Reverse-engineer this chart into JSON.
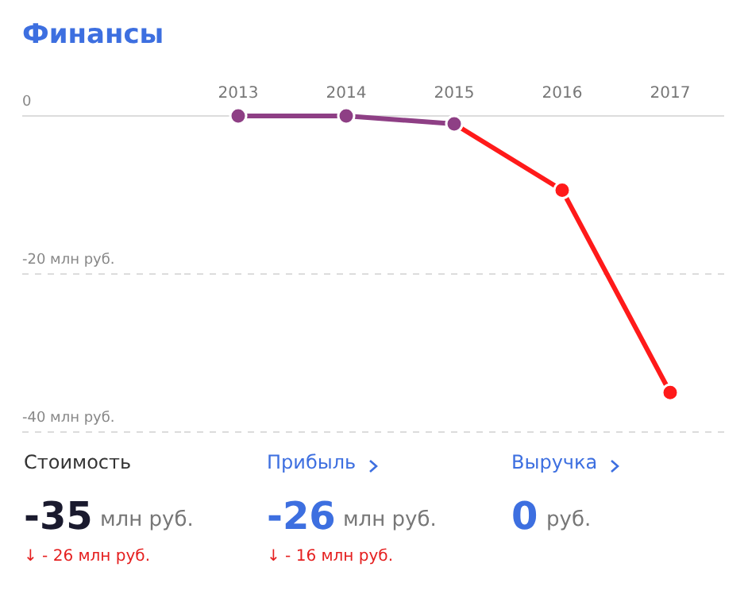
{
  "chart_data": {
    "type": "line",
    "title": "Финансы",
    "categories": [
      "2013",
      "2014",
      "2015",
      "2016",
      "2017"
    ],
    "series": [
      {
        "color": "#8e3f85",
        "values": [
          0,
          0,
          -1,
          null,
          null
        ]
      },
      {
        "color": "#ff1a1a",
        "values": [
          null,
          null,
          -1,
          -9.4,
          -35
        ]
      }
    ],
    "ylim": [
      -40,
      0
    ],
    "yticks": [
      {
        "value": -40,
        "label": "-40 млн руб."
      },
      {
        "value": -20,
        "label": "-20 млн руб."
      },
      {
        "value": 0,
        "label": "0"
      }
    ],
    "grid": "y",
    "legend": false,
    "marker": "circle",
    "line_style": "solid",
    "annotations": [
      "Стоимость",
      "-35",
      "млн руб.",
      "↓ - 26 млн руб.",
      "Прибыль",
      "-26",
      "млн руб.",
      "↓ - 16 млн руб.",
      "Выручка",
      "0",
      "руб."
    ]
  }
}
